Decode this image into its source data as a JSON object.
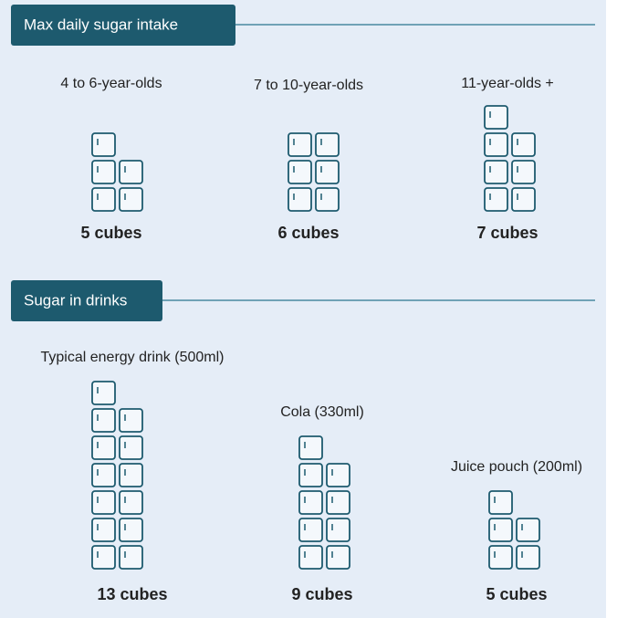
{
  "sections": [
    {
      "title": "Max daily sugar intake",
      "items": [
        {
          "label": "4 to 6-year-olds",
          "value": 5,
          "value_label": "5 cubes"
        },
        {
          "label": "7 to 10-year-olds",
          "value": 6,
          "value_label": "6 cubes"
        },
        {
          "label": "11-year-olds +",
          "value": 7,
          "value_label": "7 cubes"
        }
      ]
    },
    {
      "title": "Sugar in drinks",
      "items": [
        {
          "label": "Typical energy drink (500ml)",
          "value": 13,
          "value_label": "13 cubes"
        },
        {
          "label": "Cola (330ml)",
          "value": 9,
          "value_label": "9 cubes"
        },
        {
          "label": "Juice pouch (200ml)",
          "value": 5,
          "value_label": "5 cubes"
        }
      ]
    }
  ]
}
